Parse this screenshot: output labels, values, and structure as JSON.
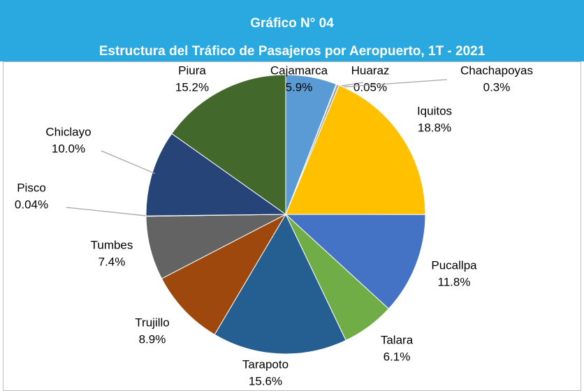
{
  "chart_data": {
    "type": "pie",
    "title": "Gráfico N°  04",
    "subtitle": "Estructura del Tráfico de Pasajeros por Aeropuerto, 1T - 2021",
    "categories": [
      "Cajamarca",
      "Huaraz",
      "Chachapoyas",
      "Iquitos",
      "Pucallpa",
      "Talara",
      "Tarapoto",
      "Trujillo",
      "Tumbes",
      "Pisco",
      "Chiclayo",
      "Piura"
    ],
    "values": [
      5.9,
      0.05,
      0.3,
      18.8,
      11.8,
      6.1,
      15.6,
      8.9,
      7.4,
      0.04,
      10.0,
      15.2
    ],
    "value_labels": [
      "5.9%",
      "0.05%",
      "0.3%",
      "18.8%",
      "11.8%",
      "6.1%",
      "15.6%",
      "8.9%",
      "7.4%",
      "0.04%",
      "10.0%",
      "15.2%"
    ],
    "colors": [
      "#5b9bd5",
      "#ed7d31",
      "#a5a5a5",
      "#ffc000",
      "#4472c4",
      "#70ad47",
      "#255e91",
      "#9e480e",
      "#636363",
      "#997300",
      "#264478",
      "#43682b"
    ]
  }
}
